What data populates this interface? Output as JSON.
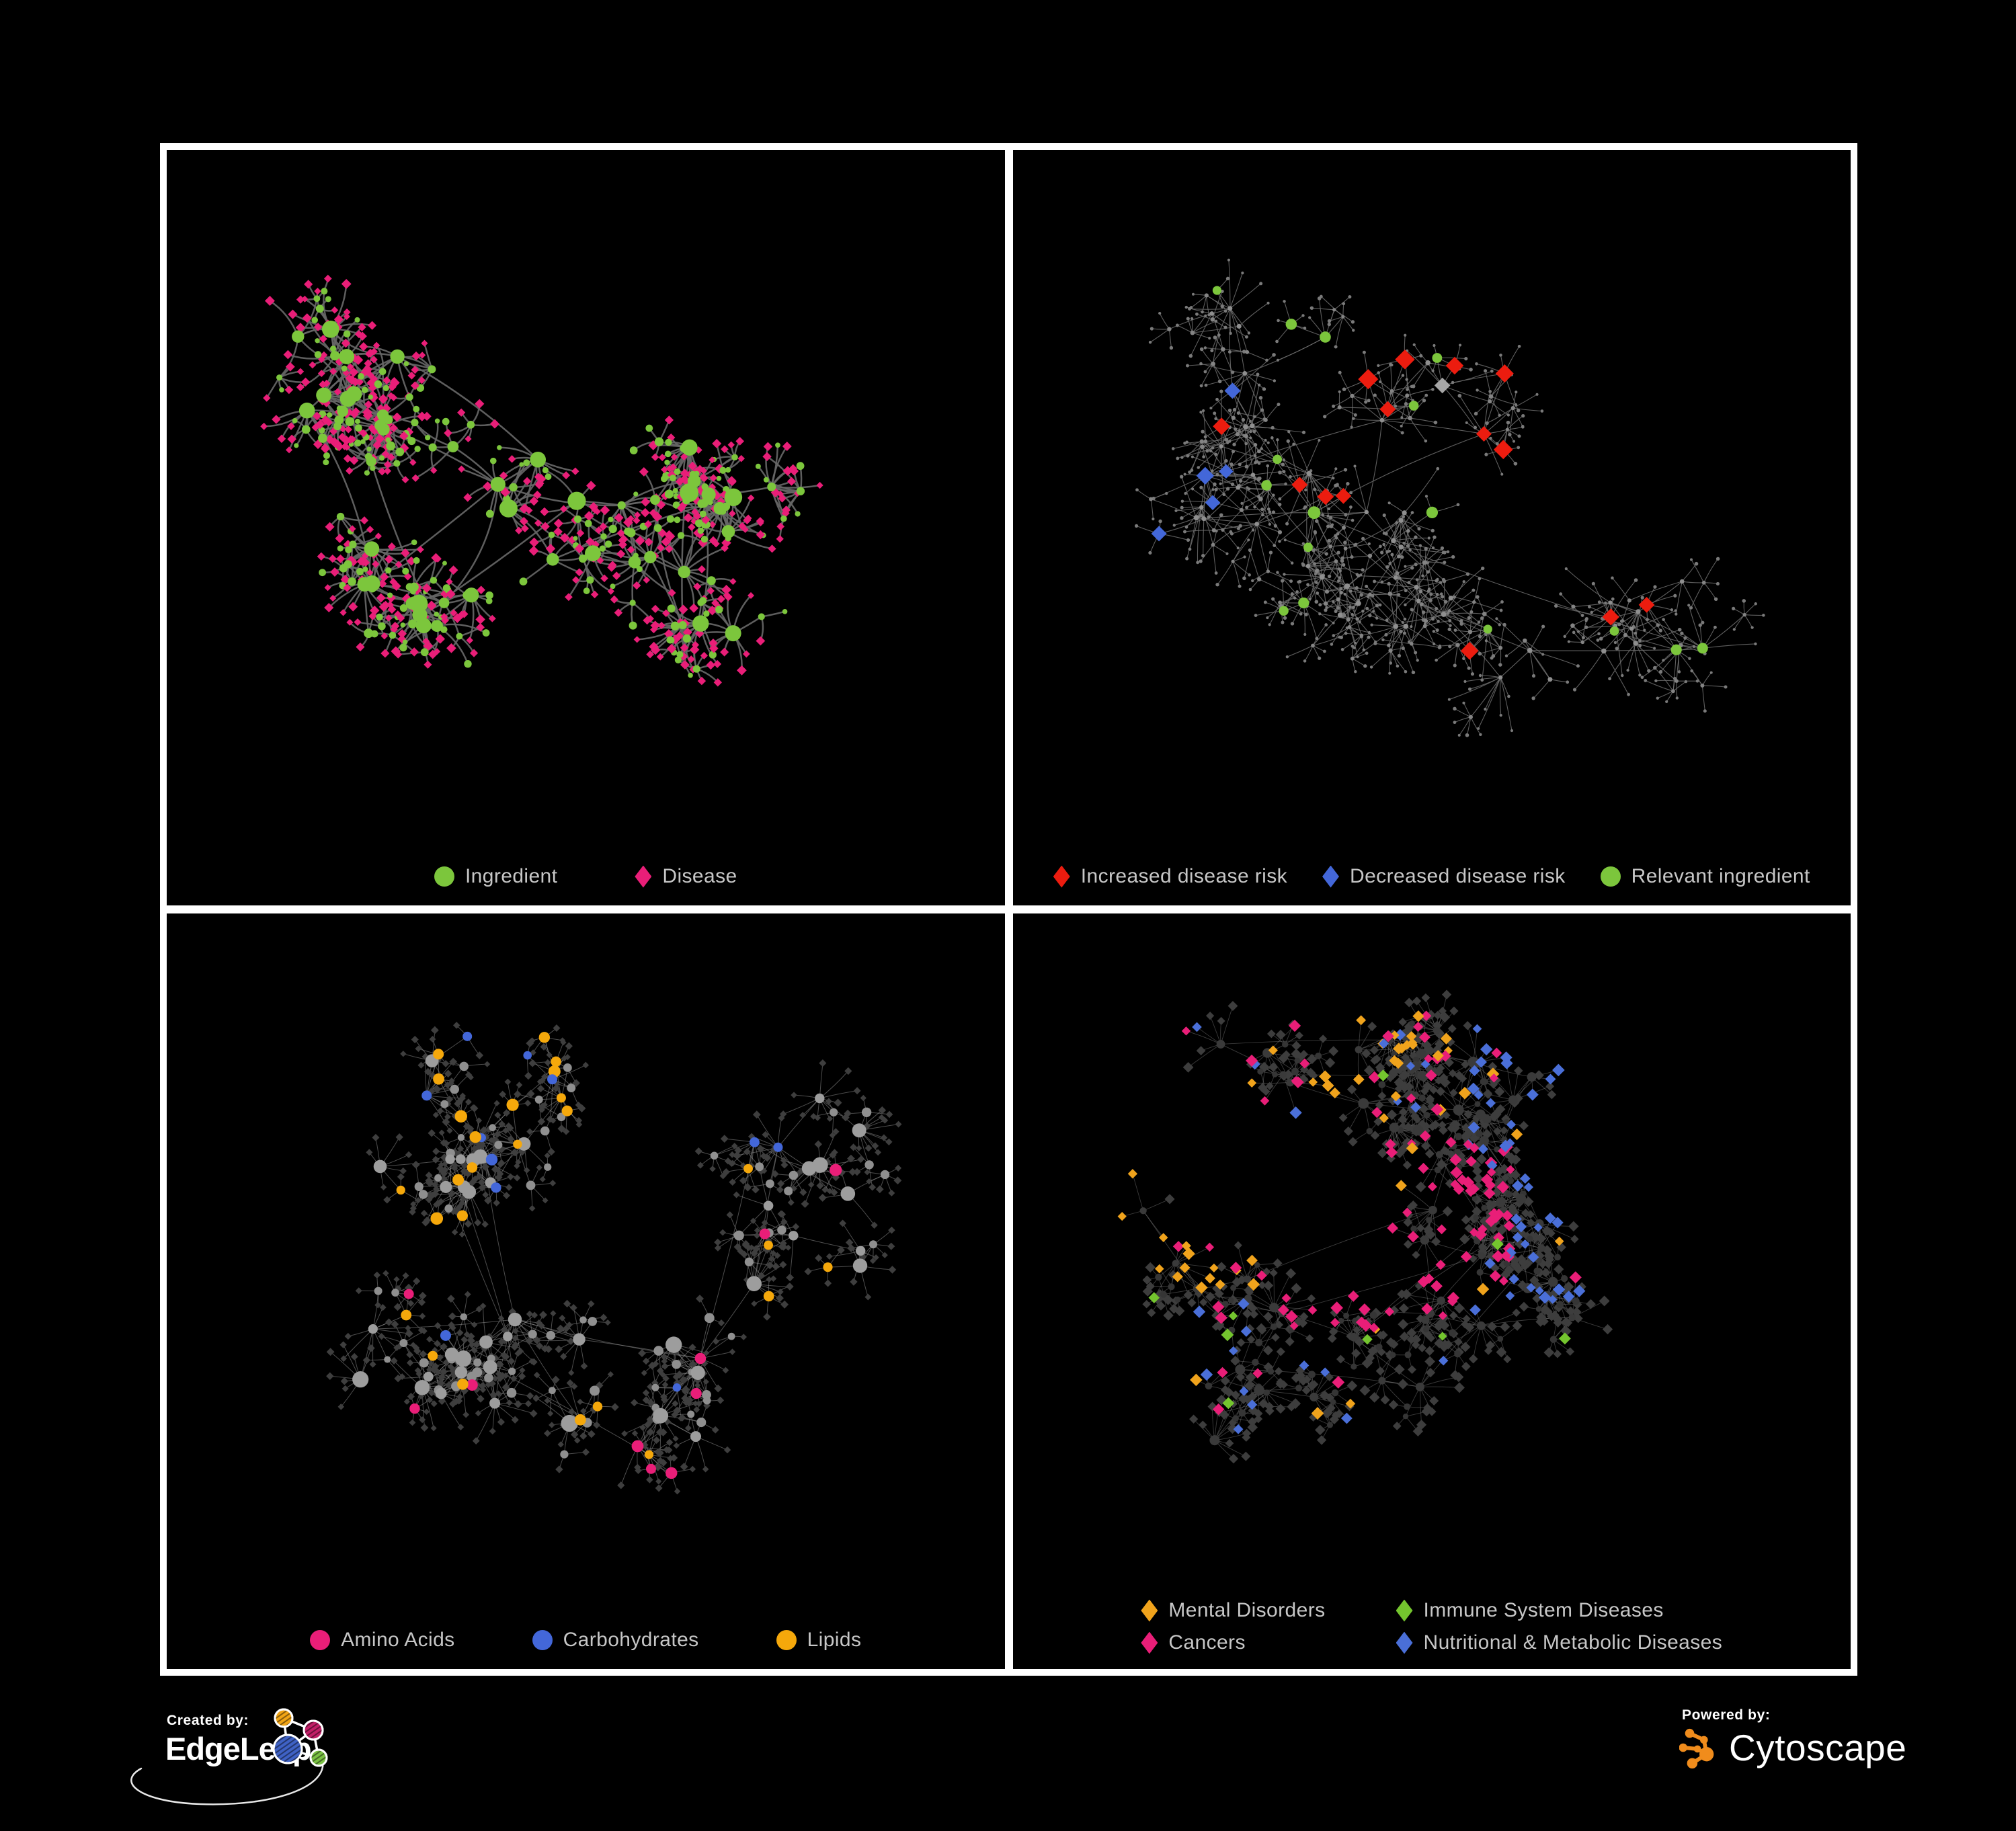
{
  "figure": {
    "background": "#000000",
    "panel_border": "#ffffff",
    "legend_text_color": "#c6c6c6"
  },
  "panels": [
    {
      "name": "ingredient-disease",
      "legend": {
        "items": [
          {
            "label": "Ingredient",
            "shape": "circle",
            "color": "#7cc63c"
          },
          {
            "label": "Disease",
            "shape": "diamond",
            "color": "#e91e78"
          }
        ]
      },
      "network": {
        "seed": 101,
        "clusters": 10,
        "hubs": 52,
        "extraLinks": 26,
        "leafMin": 4,
        "leafMax": 12,
        "subHubProb": 0.18,
        "leafRadius": [
          26,
          74
        ],
        "spread": [
          0.34,
          0.33
        ],
        "edge": {
          "color": "#666666",
          "width": 2.5,
          "opacity": 0.92,
          "curve": 0.5
        },
        "types": {
          "hub": {
            "shape": "circle",
            "color": "#7cc63c",
            "r": [
              6,
              14
            ]
          },
          "sub": {
            "shape": "circle",
            "color": "#7cc63c",
            "r": [
              4.5,
              7
            ]
          },
          "leaf": [
            {
              "w": 0.76,
              "shape": "diamond",
              "color": "#e91e78",
              "r": [
                5,
                7.5
              ]
            },
            {
              "w": 0.24,
              "shape": "circle",
              "color": "#7cc63c",
              "r": [
                3.5,
                6
              ]
            }
          ]
        },
        "highlights": []
      }
    },
    {
      "name": "disease-risk",
      "legend": {
        "items": [
          {
            "label": "Increased disease risk",
            "shape": "diamond",
            "color": "#ec1c0f"
          },
          {
            "label": "Decreased disease risk",
            "shape": "diamond",
            "color": "#4367d9"
          },
          {
            "label": "Relevant ingredient",
            "shape": "circle",
            "color": "#7cc63c"
          }
        ]
      },
      "network": {
        "seed": 202,
        "clusters": 12,
        "hubs": 58,
        "extraLinks": 22,
        "leafMin": 3,
        "leafMax": 10,
        "subHubProb": 0.3,
        "leafRadius": [
          26,
          84
        ],
        "spread": [
          0.38,
          0.36
        ],
        "edge": {
          "color": "#6e6e6e",
          "width": 1.1,
          "opacity": 0.85,
          "curve": 0.12
        },
        "types": {
          "hub": {
            "shape": "circle",
            "color": "#8f8f8f",
            "r": [
              3,
              4
            ]
          },
          "sub": {
            "shape": "circle",
            "color": "#848484",
            "r": [
              2.6,
              3.4
            ]
          },
          "leaf": {
            "shape": "circle",
            "color": "#7a7a7a",
            "r": [
              2,
              2.8
            ]
          }
        },
        "highlights": [
          {
            "level": "mid",
            "zone": [
              0.8,
              0.14,
              0.98,
              0.3
            ],
            "prob": 0.5,
            "shape": "diamond",
            "color": "#4367d9",
            "size": 12
          },
          {
            "level": "mid",
            "zone": [
              0.06,
              0.28,
              0.26,
              0.58
            ],
            "prob": 0.3,
            "shape": "diamond",
            "color": "#4367d9",
            "size": 13
          },
          {
            "level": "mid",
            "zone": [
              0.06,
              0.28,
              0.26,
              0.58
            ],
            "prob": 0.24,
            "shape": "diamond",
            "color": "#ec1c0f",
            "size": 13
          },
          {
            "level": "mid",
            "zone": [
              0.06,
              0.28,
              0.26,
              0.58
            ],
            "prob": 0.12,
            "shape": "diamond",
            "color": "#a6a6a6",
            "size": 12
          },
          {
            "level": "mid",
            "zone": [
              0.3,
              0.24,
              0.74,
              0.6
            ],
            "prob": 0.25,
            "shape": "diamond",
            "color": "#ec1c0f",
            "size": 13
          },
          {
            "level": "mid",
            "zone": [
              0.3,
              0.24,
              0.74,
              0.6
            ],
            "prob": 0.32,
            "shape": "circle",
            "color": "#7cc63c",
            "size": 8
          },
          {
            "level": "mid",
            "zone": [
              0.3,
              0.24,
              0.74,
              0.6
            ],
            "prob": 0.08,
            "shape": "diamond",
            "color": "#a6a6a6",
            "size": 12
          },
          {
            "level": "mid",
            "zone": [
              0.52,
              0.6,
              0.82,
              0.85
            ],
            "prob": 0.16,
            "shape": "diamond",
            "color": "#ec1c0f",
            "size": 12
          },
          {
            "level": "mid",
            "zone": [
              0.02,
              0.04,
              0.98,
              0.94
            ],
            "prob": 0.05,
            "shape": "circle",
            "color": "#7cc63c",
            "size": 7
          }
        ]
      }
    },
    {
      "name": "macronutrient-classes",
      "legend": {
        "items": [
          {
            "label": "Amino Acids",
            "shape": "circle",
            "color": "#e91e78"
          },
          {
            "label": "Carbohydrates",
            "shape": "circle",
            "color": "#4367d9"
          },
          {
            "label": "Lipids",
            "shape": "circle",
            "color": "#f5a80b"
          }
        ]
      },
      "network": {
        "seed": 303,
        "clusters": 11,
        "hubs": 56,
        "extraLinks": 26,
        "leafMin": 4,
        "leafMax": 12,
        "subHubProb": 0.22,
        "leafRadius": [
          24,
          64
        ],
        "spread": [
          0.36,
          0.34
        ],
        "edge": {
          "color": "#9a9a9a",
          "width": 1,
          "opacity": 0.5,
          "curve": 0.1
        },
        "types": {
          "hub": {
            "shape": "circle",
            "color": "#9d9d9d",
            "r": [
              7,
              13
            ]
          },
          "sub": {
            "shape": "circle",
            "color": "#8f8f8f",
            "r": [
              5,
              7.5
            ]
          },
          "leaf": {
            "shape": "diamond",
            "color": "#3e3e3e",
            "r": [
              4.5,
              6
            ]
          }
        },
        "highlights": [
          {
            "level": "mid",
            "zone": [
              0.28,
              0.02,
              0.62,
              0.3
            ],
            "prob": 0.4,
            "shape": "circle",
            "color": "#f5a80b",
            "size": 8
          },
          {
            "level": "mid",
            "zone": [
              0.28,
              0.02,
              0.62,
              0.3
            ],
            "prob": 0.16,
            "shape": "circle",
            "color": "#4367d9",
            "size": 7.5
          },
          {
            "level": "mid",
            "zone": [
              0.16,
              0.3,
              0.46,
              0.56
            ],
            "prob": 0.2,
            "shape": "circle",
            "color": "#f5a80b",
            "size": 8
          },
          {
            "level": "mid",
            "zone": [
              0.02,
              0.02,
              0.98,
              0.98
            ],
            "prob": 0.09,
            "shape": "circle",
            "color": "#f5a80b",
            "size": 7.5
          },
          {
            "level": "mid",
            "zone": [
              0.02,
              0.02,
              0.98,
              0.98
            ],
            "prob": 0.07,
            "shape": "circle",
            "color": "#e91e78",
            "size": 8
          },
          {
            "level": "mid",
            "zone": [
              0.02,
              0.02,
              0.98,
              0.98
            ],
            "prob": 0.04,
            "shape": "circle",
            "color": "#4367d9",
            "size": 7.5
          }
        ]
      }
    },
    {
      "name": "disease-classes",
      "legend": {
        "columns": 2,
        "items": [
          {
            "label": "Mental Disorders",
            "shape": "diamond",
            "color": "#f0a31c"
          },
          {
            "label": "Immune System Diseases",
            "shape": "diamond",
            "color": "#74c52e"
          },
          {
            "label": "Cancers",
            "shape": "diamond",
            "color": "#e91e78"
          },
          {
            "label": "Nutritional & Metabolic Diseases",
            "shape": "diamond",
            "color": "#4a6fd8"
          }
        ]
      },
      "network": {
        "seed": 404,
        "clusters": 11,
        "hubs": 58,
        "extraLinks": 26,
        "leafMin": 4,
        "leafMax": 13,
        "subHubProb": 0.24,
        "leafRadius": [
          22,
          60
        ],
        "spread": [
          0.37,
          0.35
        ],
        "edge": {
          "color": "#8c8c8c",
          "width": 0.9,
          "opacity": 0.42,
          "curve": 0.1
        },
        "types": {
          "hub": {
            "shape": "circle",
            "color": "#3a3a3a",
            "r": [
              5,
              8
            ]
          },
          "sub": {
            "shape": "circle",
            "color": "#353535",
            "r": [
              4,
              5.5
            ]
          },
          "leaf": {
            "shape": "diamond",
            "color": "#3d3d3d",
            "r": [
              6,
              8
            ]
          }
        },
        "highlights": [
          {
            "level": "leaf",
            "zone": [
              0.02,
              0.22,
              0.28,
              0.56
            ],
            "prob": 0.58,
            "shape": "diamond",
            "color": "#f0a31c",
            "size": 8
          },
          {
            "level": "leaf",
            "zone": [
              0.28,
              0.32,
              0.6,
              0.62
            ],
            "prob": 0.3,
            "shape": "diamond",
            "color": "#e91e78",
            "size": 8
          },
          {
            "level": "leaf",
            "zone": [
              0.6,
              0.28,
              0.97,
              0.58
            ],
            "prob": 0.28,
            "shape": "diamond",
            "color": "#4a6fd8",
            "size": 8
          },
          {
            "level": "leaf",
            "zone": [
              0.55,
              0.02,
              0.97,
              0.28
            ],
            "prob": 0.25,
            "shape": "diamond",
            "color": "#4a6fd8",
            "size": 8
          },
          {
            "level": "leaf",
            "zone": [
              0.25,
              0.02,
              0.55,
              0.28
            ],
            "prob": 0.12,
            "shape": "diamond",
            "color": "#f0a31c",
            "size": 8
          },
          {
            "level": "leaf",
            "zone": [
              0.25,
              0.02,
              0.55,
              0.28
            ],
            "prob": 0.1,
            "shape": "diamond",
            "color": "#e91e78",
            "size": 8
          },
          {
            "level": "leaf",
            "zone": [
              0.02,
              0.02,
              0.98,
              0.98
            ],
            "prob": 0.02,
            "shape": "diamond",
            "color": "#74c52e",
            "size": 8
          },
          {
            "level": "leaf",
            "zone": [
              0.02,
              0.02,
              0.98,
              0.98
            ],
            "prob": 0.05,
            "shape": "diamond",
            "color": "#4a6fd8",
            "size": 8
          },
          {
            "level": "leaf",
            "zone": [
              0.02,
              0.02,
              0.98,
              0.98
            ],
            "prob": 0.035,
            "shape": "diamond",
            "color": "#e91e78",
            "size": 8
          },
          {
            "level": "leaf",
            "zone": [
              0.02,
              0.02,
              0.98,
              0.98
            ],
            "prob": 0.02,
            "shape": "diamond",
            "color": "#f0a31c",
            "size": 8
          }
        ]
      }
    }
  ],
  "footer": {
    "created_by_label": "Created by:",
    "created_by_brand": "EdgeLeap",
    "powered_by_label": "Powered by:",
    "powered_by_brand": "Cytoscape",
    "cytoscape_orange": "#f08c1c",
    "edgeleap_colors": {
      "orange": "#f2a515",
      "magenta": "#c21f67",
      "blue": "#3f62c5",
      "green": "#7ac143"
    }
  }
}
